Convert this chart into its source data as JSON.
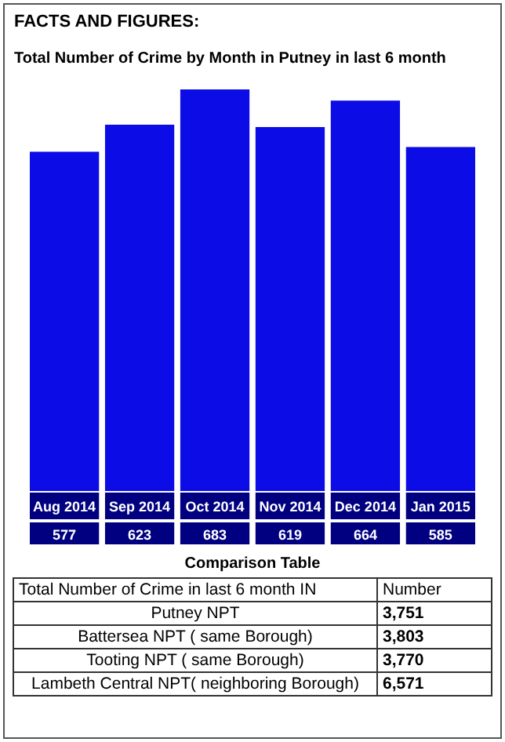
{
  "chart_data": {
    "type": "bar",
    "subtitle": "FACTS AND FIGURES:",
    "title": "Total Number of Crime by Month in Putney in last 6 month",
    "categories": [
      "Aug 2014",
      "Sep 2014",
      "Oct 2014",
      "Nov 2014",
      "Dec 2014",
      "Jan 2015"
    ],
    "values": [
      577,
      623,
      683,
      619,
      664,
      585
    ],
    "color": "#0c0ce6",
    "data_labels": true,
    "annotations": [
      "Comparison Table",
      "Total Number of Crime in last 6 month IN",
      "Number",
      "Putney NPT",
      "3,751",
      "Battersea NPT ( same Borough)",
      "3,803",
      "Tooting NPT ( same Borough)",
      "3,770",
      "Lambeth Central NPT( neighboring Borough)",
      "6,571"
    ]
  }
}
